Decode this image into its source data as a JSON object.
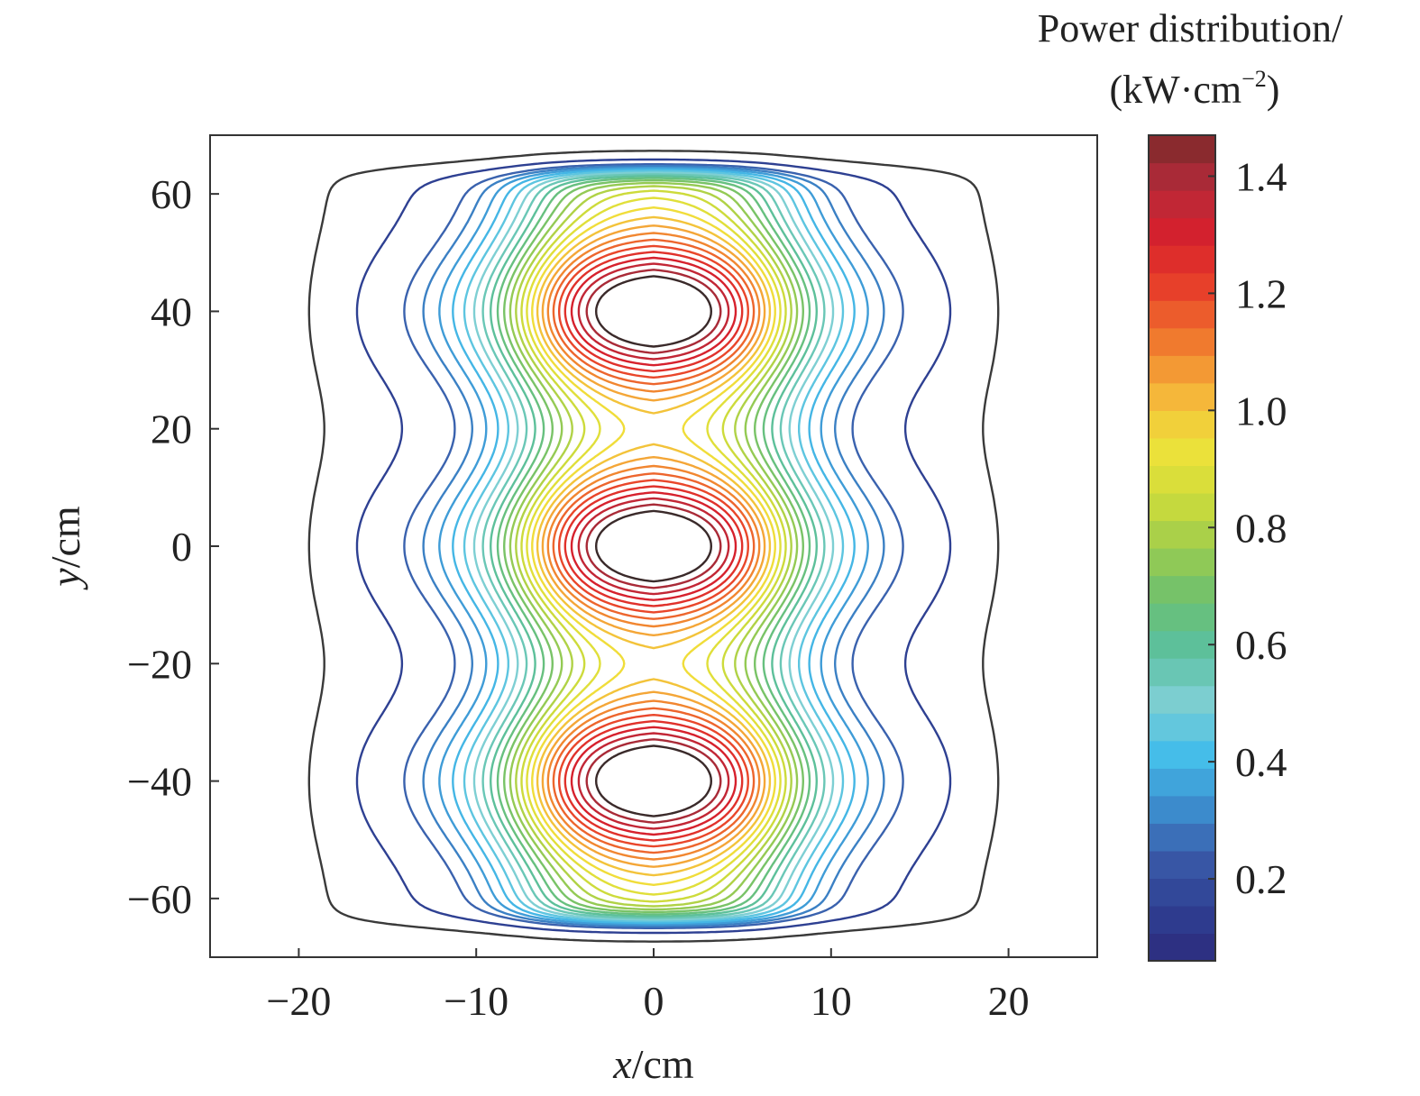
{
  "chart_data": {
    "type": "contour",
    "colorbar_title_line1": "Power distribution/",
    "colorbar_title_line2_prefix": "(kW·cm",
    "colorbar_title_line2_exponent": "−2",
    "colorbar_title_line2_suffix": ")",
    "xlabel_var": "x",
    "xlabel_unit": "/cm",
    "ylabel_var": "y",
    "ylabel_unit": "/cm",
    "xlim": [
      -25,
      25
    ],
    "ylim": [
      -70,
      70
    ],
    "x_ticks": [
      {
        "value": -20,
        "label": "−20"
      },
      {
        "value": -10,
        "label": "−10"
      },
      {
        "value": 0,
        "label": "0"
      },
      {
        "value": 10,
        "label": "10"
      },
      {
        "value": 20,
        "label": "20"
      }
    ],
    "y_ticks": [
      {
        "value": 60,
        "label": "60"
      },
      {
        "value": 40,
        "label": "40"
      },
      {
        "value": 20,
        "label": "20"
      },
      {
        "value": 0,
        "label": "0"
      },
      {
        "value": -20,
        "label": "−20"
      },
      {
        "value": -40,
        "label": "−40"
      },
      {
        "value": -60,
        "label": "−60"
      }
    ],
    "colorbar": {
      "range": [
        0.06,
        1.47
      ],
      "ticks": [
        {
          "value": 0.2,
          "label": "0.2"
        },
        {
          "value": 0.4,
          "label": "0.4"
        },
        {
          "value": 0.6,
          "label": "0.6"
        },
        {
          "value": 0.8,
          "label": "0.8"
        },
        {
          "value": 1.0,
          "label": "1.0"
        },
        {
          "value": 1.2,
          "label": "1.2"
        },
        {
          "value": 1.4,
          "label": "1.4"
        }
      ],
      "colormap": [
        "#2c2a7c",
        "#2e3f92",
        "#3a5aa8",
        "#3c8fcf",
        "#45bde9",
        "#7ecfd3",
        "#5bc0a0",
        "#6cc070",
        "#9ccc4e",
        "#cfdc3a",
        "#efe23a",
        "#f5b43a",
        "#f07a2e",
        "#e8422a",
        "#d8202c",
        "#b52a3a",
        "#7a2a2a"
      ]
    },
    "contour_levels": [
      0.05,
      0.15,
      0.25,
      0.3,
      0.35,
      0.4,
      0.45,
      0.5,
      0.55,
      0.6,
      0.65,
      0.7,
      0.75,
      0.8,
      0.85,
      0.9,
      0.95,
      1.0,
      1.05,
      1.1,
      1.15,
      1.2,
      1.25,
      1.3,
      1.35,
      1.4,
      1.45
    ],
    "field": {
      "peak_value": 1.47,
      "lobe_centers_y": [
        -40,
        0,
        40
      ],
      "x_extent": [
        -20,
        20
      ],
      "y_extent": [
        -65,
        65
      ]
    }
  }
}
